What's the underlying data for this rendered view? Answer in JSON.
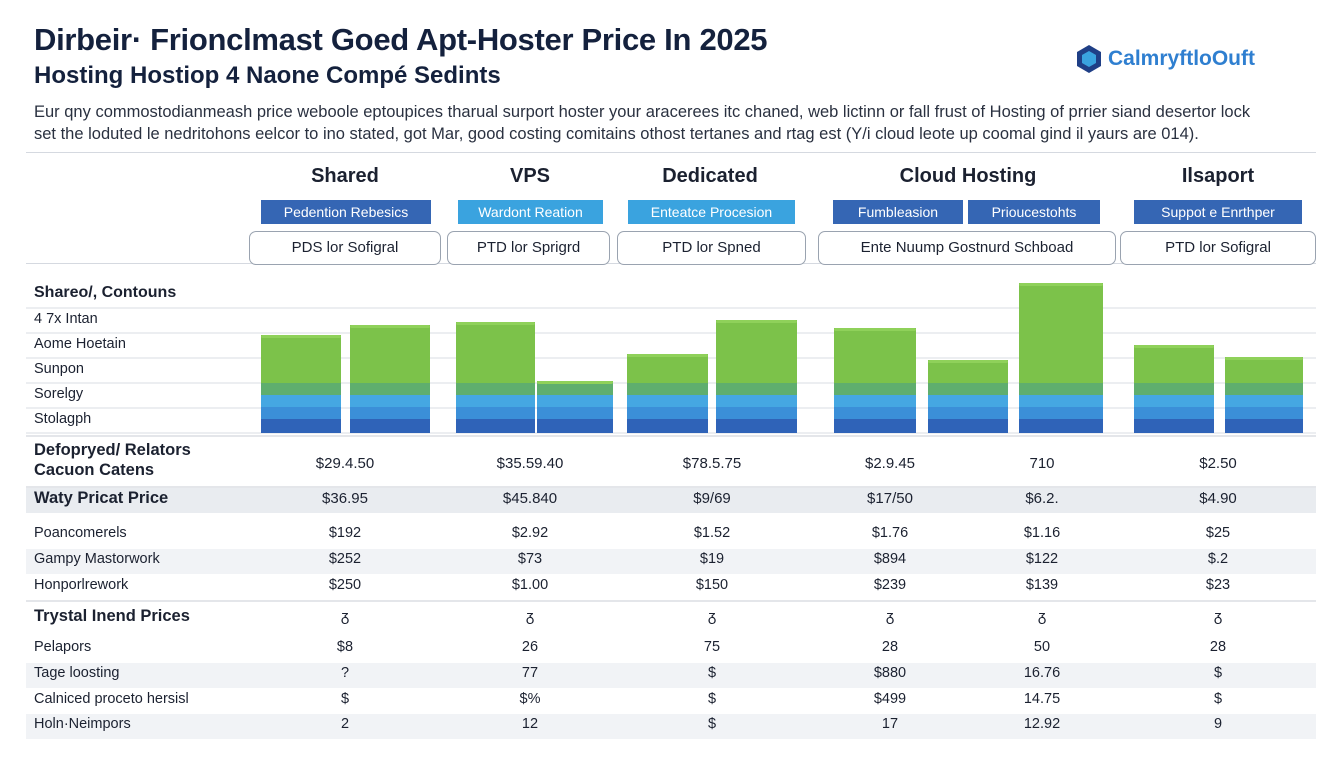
{
  "header": {
    "title": "Dirbeir· Frionclmast Goed Apt-Hoster Price In 2025",
    "subtitle": "Hosting Hostiop 4 Naone Compé Sedints",
    "logo": "CalmryftloOuft"
  },
  "intro": [
    "Eur qny commostodianmeash price weboole eptoupices tharual surport hoster your aracerees itc chaned, web lictinn or fall frust of Hosting of prrier siand desertor lock",
    "set the loduted le nedritohons eelcor to ino stated, got Mar, good costing comitains othost tertanes and rtag est (Y/i cloud leote up coomal gind il yaurs are 014)."
  ],
  "columns": [
    "Shared",
    "VPS",
    "Dedicated",
    "Cloud Hosting",
    "Ilsaport"
  ],
  "badges": [
    "Pedention Rebesics",
    "Wardont Reation",
    "Enteatce Procesion",
    "Fumbleasion",
    "Prioucestohts",
    "Suppot e Enrthper"
  ],
  "pills": [
    "PDS lor Sofigral",
    "PTD lor Sprigrd",
    "PTD lor Spned",
    "Ente Nuump Gostnurd Schboad",
    "PTD lor Sofigral"
  ],
  "chart": {
    "heading": "Shareo/, Contouns",
    "rows": [
      "4 7x Intan",
      "Aome Hoetain",
      "Sunpon",
      "Sorelgy",
      "Stolagph"
    ]
  },
  "table": {
    "sections": [
      {
        "title": "Defopryed/ Relators\nCacuon Catens",
        "values": [
          "$29.4.50",
          "$35.59.40",
          "$78.5.75",
          "$2.9.45",
          "710",
          "$2.50"
        ],
        "rows": []
      },
      {
        "title": "Waty Pricat Price",
        "values": [
          "$36.95",
          "$45.840",
          "$9/69",
          "$17/50",
          "$6.2.",
          "$4.90"
        ],
        "rows": [
          {
            "label": "Poancomerels",
            "values": [
              "$192",
              "$2.92",
              "$1.52",
              "$1.76",
              "$1.16",
              "$25"
            ]
          },
          {
            "label": "Gampy Mastorwork",
            "values": [
              "$252",
              "$73",
              "$19",
              "$894",
              "$122",
              "$.2"
            ]
          },
          {
            "label": "Honporlrework",
            "values": [
              "$250",
              "$1.00",
              "$150",
              "$239",
              "$139",
              "$23"
            ]
          }
        ]
      },
      {
        "title": "Trystal Inend Prices",
        "values": [
          "ᵹ",
          "ᵹ",
          "ᵹ",
          "ᵹ",
          "ᵹ",
          "ᵹ"
        ],
        "rows": [
          {
            "label": "Pelapors",
            "values": [
              "$8",
              "26",
              "75",
              "28",
              "50",
              "28"
            ]
          },
          {
            "label": "Tage loosting",
            "values": [
              "?",
              "77",
              "$",
              "$880",
              "16.76",
              "$"
            ]
          },
          {
            "label": "Calniced proceto hersisl",
            "values": [
              "$",
              "$%",
              "$",
              "$499",
              "14.75",
              "$"
            ]
          },
          {
            "label": "Holn·Neimpors",
            "values": [
              "2",
              "12",
              "$",
              "17",
              "12.92",
              "9"
            ]
          }
        ]
      }
    ]
  }
}
